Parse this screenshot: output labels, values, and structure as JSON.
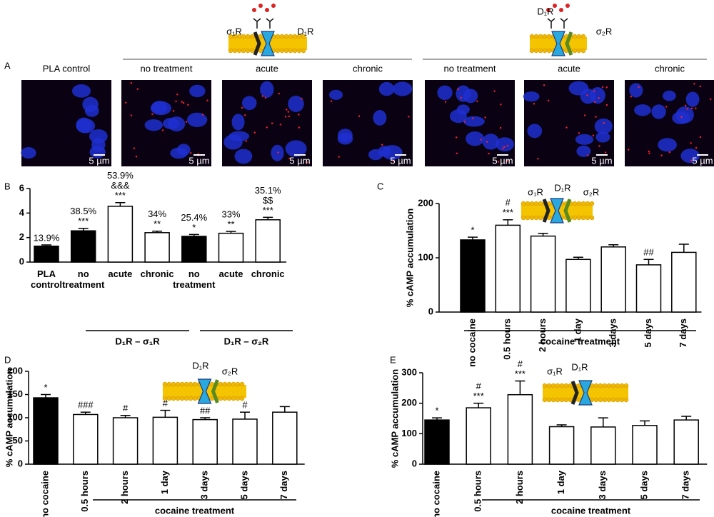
{
  "panel_a": {
    "letter": "A",
    "column_labels": [
      "PLA control",
      "no treatment",
      "acute",
      "chronic",
      "no treatment",
      "acute",
      "chronic"
    ],
    "scale_bars": [
      "5 µm",
      "5 µm",
      "5 µm",
      "5 µm",
      "5 µm",
      "5 µm",
      "5 µm"
    ],
    "receptor_groups": [
      [
        "σ₁R",
        "D₁R"
      ],
      [
        "D₁R",
        "σ₂R"
      ]
    ]
  },
  "chart_data": [
    {
      "type": "bar",
      "letter": "B",
      "categories": [
        "PLA control",
        "no treatment",
        "acute",
        "chronic",
        "no treatment",
        "acute",
        "chronic"
      ],
      "values": [
        1.3,
        2.55,
        4.55,
        2.4,
        2.1,
        2.35,
        3.45
      ],
      "errors": [
        0.1,
        0.2,
        0.3,
        0.12,
        0.15,
        0.15,
        0.2
      ],
      "colors": [
        "#000000",
        "#000000",
        "#ffffff",
        "#ffffff",
        "#000000",
        "#ffffff",
        "#ffffff"
      ],
      "annotations": [
        [
          "13.9%"
        ],
        [
          "38.5%",
          "***"
        ],
        [
          "53.9%",
          "&&&",
          "***"
        ],
        [
          "34%",
          "**"
        ],
        [
          "25.4%",
          "*"
        ],
        [
          "33%",
          "**"
        ],
        [
          "35.1%",
          "$$",
          "***"
        ]
      ],
      "ylim": [
        0,
        6
      ],
      "yticks": [
        0,
        2,
        4,
        6
      ],
      "group_labels": [
        "D₁R – σ₁R",
        "D₁R – σ₂R"
      ]
    },
    {
      "type": "bar",
      "letter": "C",
      "ylabel": "% cAMP accumulation",
      "categories": [
        "no cocaine",
        "0.5 hours",
        "2 hours",
        "1 day",
        "3 days",
        "5 days",
        "7 days"
      ],
      "values": [
        133,
        160,
        140,
        97,
        120,
        87,
        110
      ],
      "errors": [
        5,
        10,
        5,
        4,
        4,
        10,
        15
      ],
      "colors": [
        "#000000",
        "#ffffff",
        "#ffffff",
        "#ffffff",
        "#ffffff",
        "#ffffff",
        "#ffffff"
      ],
      "annotations": [
        [
          "*"
        ],
        [
          "#",
          "***"
        ],
        [],
        [],
        [],
        [
          "##"
        ],
        []
      ],
      "ylim": [
        0,
        200
      ],
      "yticks": [
        0,
        100,
        200
      ],
      "group_labels": [
        "cocaine treatment"
      ],
      "receptor_labels": [
        "σ₁R",
        "D₁R",
        "σ₂R"
      ]
    },
    {
      "type": "bar",
      "letter": "D",
      "ylabel": "% cAMP accumulation",
      "categories": [
        "no cocaine",
        "0.5 hours",
        "2 hours",
        "1 day",
        "3 days",
        "5 days",
        "7 days"
      ],
      "values": [
        143,
        107,
        100,
        101,
        96,
        97,
        112
      ],
      "errors": [
        7,
        5,
        5,
        15,
        4,
        15,
        12
      ],
      "colors": [
        "#000000",
        "#ffffff",
        "#ffffff",
        "#ffffff",
        "#ffffff",
        "#ffffff",
        "#ffffff"
      ],
      "annotations": [
        [
          "*"
        ],
        [
          "###"
        ],
        [
          "#"
        ],
        [
          "#"
        ],
        [
          "##"
        ],
        [
          "#"
        ],
        []
      ],
      "ylim": [
        0,
        200
      ],
      "yticks": [
        0,
        50,
        100,
        150,
        200
      ],
      "group_labels": [
        "cocaine treatment"
      ],
      "receptor_labels": [
        "D₁R",
        "σ₂R"
      ]
    },
    {
      "type": "bar",
      "letter": "E",
      "ylabel": "% cAMP accumulation",
      "categories": [
        "no cocaine",
        "0.5 hours",
        "2 hours",
        "1 day",
        "3 days",
        "5 days",
        "7 days"
      ],
      "values": [
        145,
        185,
        228,
        123,
        122,
        127,
        145
      ],
      "errors": [
        7,
        15,
        45,
        6,
        30,
        15,
        12
      ],
      "colors": [
        "#000000",
        "#ffffff",
        "#ffffff",
        "#ffffff",
        "#ffffff",
        "#ffffff",
        "#ffffff"
      ],
      "annotations": [
        [
          "*"
        ],
        [
          "#",
          "***"
        ],
        [
          "#",
          "***"
        ],
        [],
        [],
        [],
        []
      ],
      "ylim": [
        0,
        300
      ],
      "yticks": [
        0,
        100,
        200,
        300
      ],
      "group_labels": [
        "cocaine treatment"
      ],
      "receptor_labels": [
        "σ₁R",
        "D₁R"
      ]
    }
  ]
}
